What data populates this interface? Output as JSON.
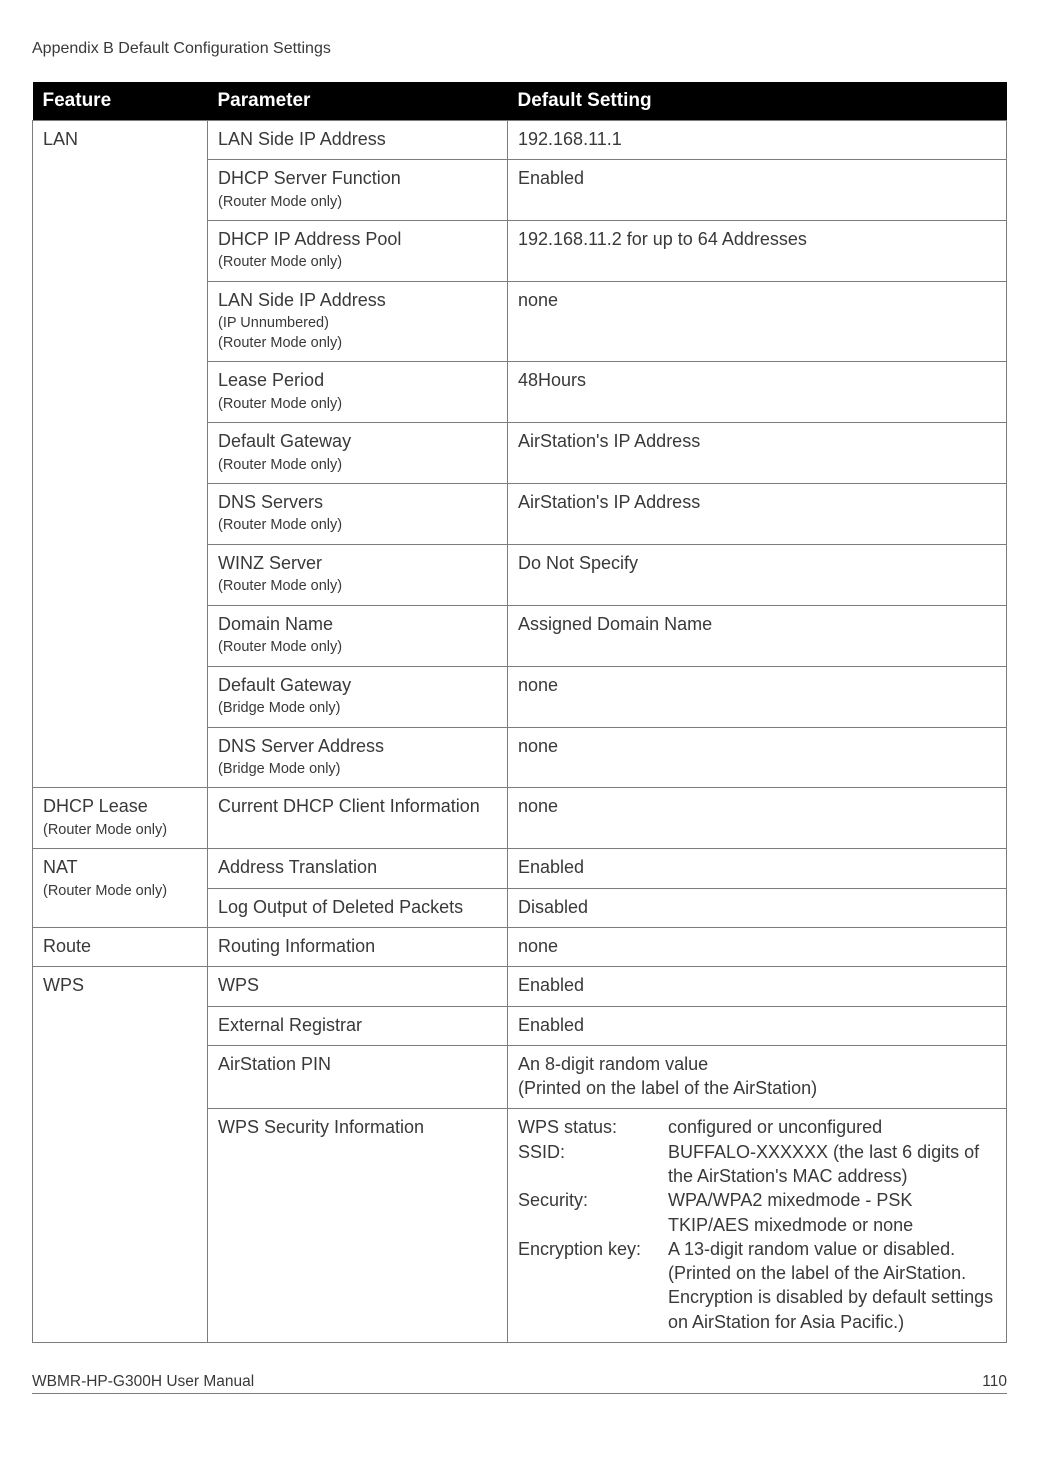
{
  "top_header": "Appendix B  Default Configuration Settings",
  "headers": {
    "feature": "Feature",
    "parameter": "Parameter",
    "setting": "Default Setting"
  },
  "lan": {
    "feature": "LAN",
    "rows": [
      {
        "param": "LAN Side IP Address",
        "sub": "",
        "setting": "192.168.11.1"
      },
      {
        "param": "DHCP Server Function",
        "sub": "(Router Mode only)",
        "setting": "Enabled"
      },
      {
        "param": "DHCP IP Address Pool",
        "sub": "(Router Mode only)",
        "setting": "192.168.11.2 for up to 64 Addresses"
      },
      {
        "param": "LAN Side IP Address",
        "sub": "(IP Unnumbered)\n(Router Mode only)",
        "setting": "none"
      },
      {
        "param": "Lease Period",
        "sub": "(Router Mode only)",
        "setting": "48Hours"
      },
      {
        "param": "Default Gateway",
        "sub": "(Router Mode only)",
        "setting": "AirStation's IP Address"
      },
      {
        "param": "DNS Servers",
        "sub": "(Router Mode only)",
        "setting": "AirStation's IP Address"
      },
      {
        "param": "WINZ Server",
        "sub": "(Router Mode only)",
        "setting": "Do Not Specify"
      },
      {
        "param": "Domain Name",
        "sub": "(Router Mode only)",
        "setting": "Assigned Domain Name"
      },
      {
        "param": "Default Gateway",
        "sub": "(Bridge Mode only)",
        "setting": "none"
      },
      {
        "param": "DNS Server Address",
        "sub": "(Bridge Mode only)",
        "setting": "none"
      }
    ]
  },
  "dhcp_lease": {
    "feature": "DHCP Lease",
    "feature_sub": "(Router Mode only)",
    "param": "Current DHCP Client Information",
    "setting": "none"
  },
  "nat": {
    "feature": "NAT",
    "feature_sub": "(Router Mode only)",
    "rows": [
      {
        "param": "Address Translation",
        "setting": "Enabled"
      },
      {
        "param": "Log Output of Deleted Packets",
        "setting": "Disabled"
      }
    ]
  },
  "route": {
    "feature": "Route",
    "param": "Routing Information",
    "setting": "none"
  },
  "wps": {
    "feature": "WPS",
    "rows": [
      {
        "param": "WPS",
        "setting": "Enabled"
      },
      {
        "param": "External Registrar",
        "setting": "Enabled"
      },
      {
        "param": "AirStation PIN",
        "setting": "An 8-digit random value\n(Printed on the label of the AirStation)"
      }
    ],
    "security_param": "WPS Security Information",
    "security": {
      "k1": "WPS status:",
      "v1": "configured or unconfigured",
      "k2": "SSID:",
      "v2": "BUFFALO-XXXXXX (the last 6 digits of the AirStation's MAC address)",
      "k3": "Security:",
      "v3": "WPA/WPA2 mixedmode - PSK TKIP/AES mixedmode or none",
      "k4": "Encryption key:",
      "v4": "A 13-digit random value or disabled. (Printed on the label of the AirStation. Encryption is disabled by default settings on AirStation for Asia Pacific.)"
    }
  },
  "footer": {
    "manual": "WBMR-HP-G300H User Manual",
    "page": "110"
  }
}
